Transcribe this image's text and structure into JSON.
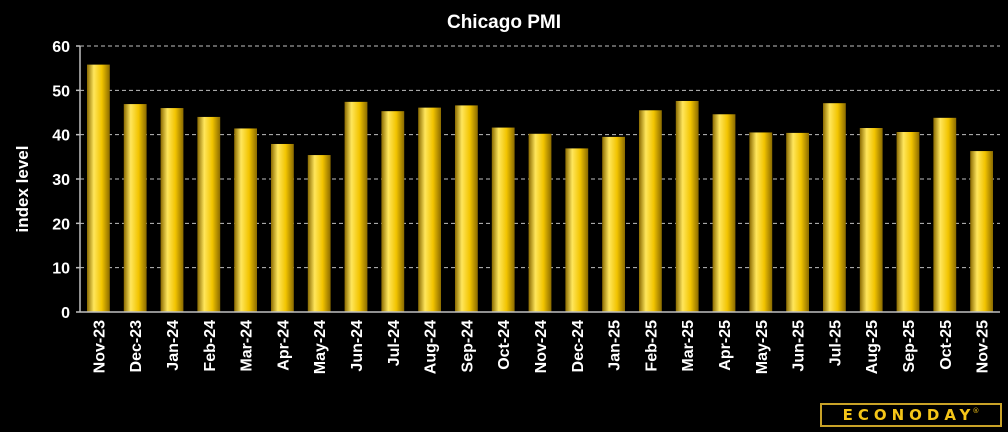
{
  "chart_data": {
    "type": "bar",
    "title": "Chicago PMI",
    "xlabel": "",
    "ylabel": "index level",
    "categories": [
      "Nov-23",
      "Dec-23",
      "Jan-24",
      "Feb-24",
      "Mar-24",
      "Apr-24",
      "May-24",
      "Jun-24",
      "Jul-24",
      "Aug-24",
      "Sep-24",
      "Oct-24",
      "Nov-24",
      "Dec-24",
      "Jan-25",
      "Feb-25",
      "Mar-25",
      "Apr-25",
      "May-25",
      "Jun-25",
      "Jul-25",
      "Aug-25",
      "Sep-25",
      "Oct-25",
      "Nov-25"
    ],
    "values": [
      55.8,
      46.9,
      46.0,
      44.0,
      41.4,
      37.9,
      35.4,
      47.4,
      45.3,
      46.1,
      46.6,
      41.6,
      40.2,
      36.9,
      39.5,
      45.5,
      47.6,
      44.6,
      40.5,
      40.4,
      47.1,
      41.5,
      40.6,
      43.8,
      36.3
    ],
    "ylim": [
      0,
      60
    ],
    "yticks": [
      0,
      10,
      20,
      30,
      40,
      50,
      60
    ],
    "grid": true,
    "legend": "none",
    "colors": {
      "background": "#000000",
      "bar_light": "#ffe65c",
      "bar_main": "#f2c400",
      "bar_dark": "#8a6a00",
      "gridline": "#bfbfbf",
      "text": "#ffffff"
    }
  },
  "logo": {
    "text": "ECONODAY",
    "mark": "®"
  }
}
